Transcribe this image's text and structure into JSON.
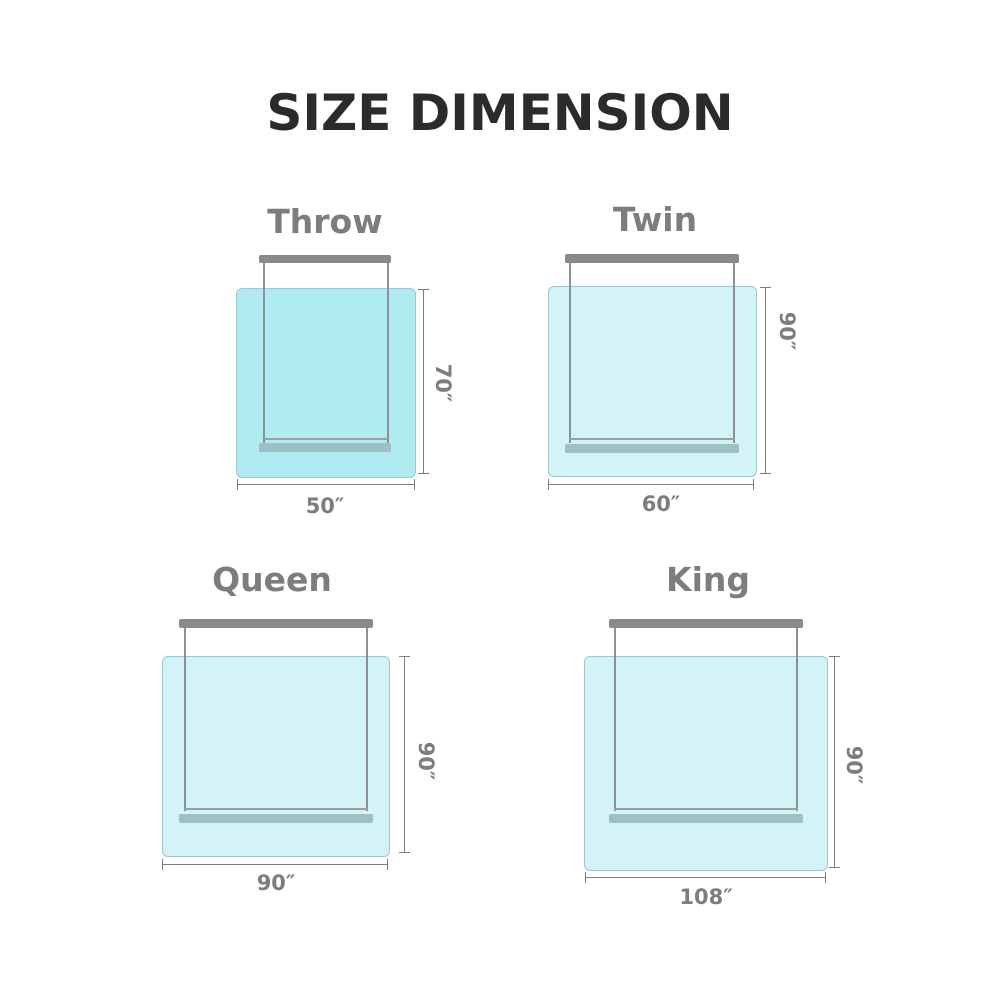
{
  "title": "SIZE DIMENSION",
  "colors": {
    "throw_panel": "#b1ebf2",
    "other_panel": "#d3f3f6",
    "rod": "#8a8a8a",
    "text_dark": "#2b2b2b",
    "text_gray": "#7d7d7d"
  },
  "sizes": [
    {
      "name": "Throw",
      "width": "50″",
      "height": "70″"
    },
    {
      "name": "Twin",
      "width": "60″",
      "height": "90″"
    },
    {
      "name": "Queen",
      "width": "90″",
      "height": "90″"
    },
    {
      "name": "King",
      "width": "108″",
      "height": "90″"
    }
  ]
}
